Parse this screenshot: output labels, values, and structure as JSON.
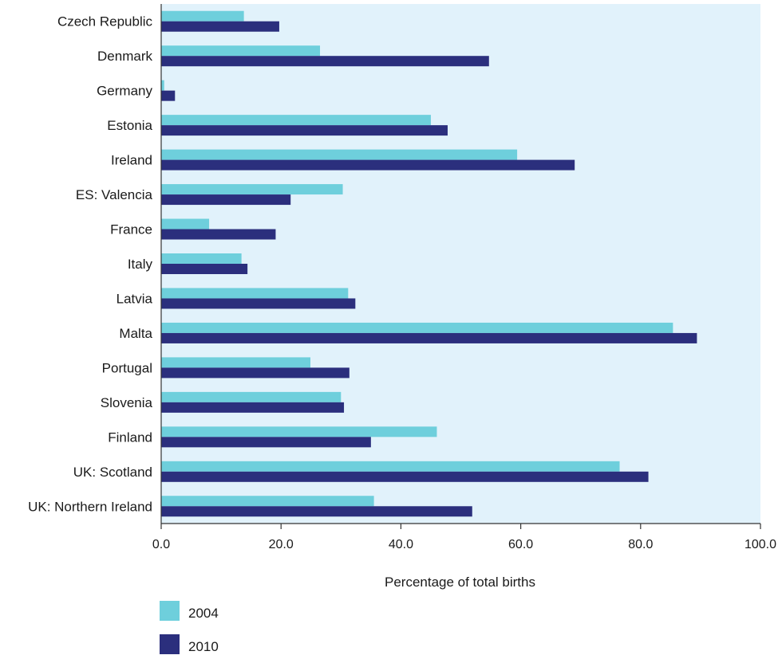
{
  "chart_data": {
    "type": "bar",
    "orientation": "horizontal",
    "categories": [
      "Czech Republic",
      "Denmark",
      "Germany",
      "Estonia",
      "Ireland",
      "ES: Valencia",
      "France",
      "Italy",
      "Latvia",
      "Malta",
      "Portugal",
      "Slovenia",
      "Finland",
      "UK: Scotland",
      "UK: Northern Ireland"
    ],
    "series": [
      {
        "name": "2004",
        "color": "#6ecfdc",
        "values": [
          13.8,
          26.5,
          0.5,
          45.0,
          59.4,
          30.3,
          8.0,
          13.4,
          31.2,
          85.4,
          24.9,
          30.0,
          46.0,
          76.5,
          35.5
        ]
      },
      {
        "name": "2010",
        "color": "#2b2f7d",
        "values": [
          19.7,
          54.7,
          2.3,
          47.8,
          69.0,
          21.6,
          19.1,
          14.4,
          32.4,
          89.4,
          31.4,
          30.5,
          35.0,
          81.3,
          51.9
        ]
      }
    ],
    "xlabel": "Percentage of total births",
    "ylabel": "",
    "xlim": [
      0,
      100
    ],
    "xticks": [
      "0.0",
      "20.0",
      "40.0",
      "60.0",
      "80.0",
      "100.0"
    ],
    "plot_background": "#e1f2fb",
    "grid": false,
    "legend_position": "bottom-left"
  }
}
